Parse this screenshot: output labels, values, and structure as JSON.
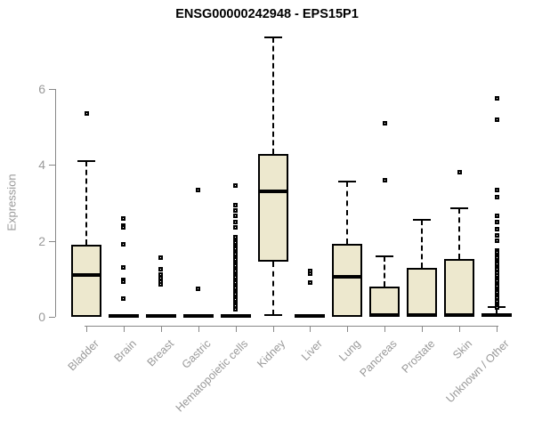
{
  "title": "ENSG00000242948 - EPS15P1",
  "colors": {
    "box_fill": "#EDE8CE",
    "box_border": "#000000",
    "median": "#000000",
    "axis": "#888888",
    "tick_label": "#999999",
    "title": "#000000",
    "background": "#ffffff"
  },
  "chart_data": {
    "type": "boxplot",
    "title": "ENSG00000242948 - EPS15P1",
    "xlabel": "",
    "ylabel": "Expression",
    "ylim": [
      0,
      7.5
    ],
    "yticks": [
      0,
      2,
      4,
      6
    ],
    "grid": false,
    "legend": false,
    "categories": [
      "Bladder",
      "Brain",
      "Breast",
      "Gastric",
      "Hematopoietic cells",
      "Kidney",
      "Liver",
      "Lung",
      "Pancreas",
      "Prostate",
      "Skin",
      "Unknown / Other"
    ],
    "series": [
      {
        "category": "Bladder",
        "whisker_low": 0,
        "q1": 0,
        "median": 1.1,
        "q3": 1.9,
        "whisker_high": 4.1,
        "outliers": [
          5.35
        ]
      },
      {
        "category": "Brain",
        "whisker_low": 0,
        "q1": 0,
        "median": 0.03,
        "q3": 0.07,
        "whisker_high": 0.07,
        "outliers": [
          2.6,
          2.4,
          2.35,
          1.9,
          1.3,
          0.98,
          0.93,
          0.47
        ]
      },
      {
        "category": "Breast",
        "whisker_low": 0,
        "q1": 0,
        "median": 0.03,
        "q3": 0.07,
        "whisker_high": 0.07,
        "outliers": [
          1.55,
          1.25,
          1.12,
          1.02,
          0.92,
          0.85
        ]
      },
      {
        "category": "Gastric",
        "whisker_low": 0,
        "q1": 0,
        "median": 0.03,
        "q3": 0.07,
        "whisker_high": 0.07,
        "outliers": [
          3.35,
          0.73
        ]
      },
      {
        "category": "Hematopoietic cells",
        "whisker_low": 0,
        "q1": 0,
        "median": 0.03,
        "q3": 0.07,
        "whisker_high": 0.07,
        "outliers": [
          3.45,
          2.95,
          2.8,
          2.65,
          2.5,
          2.35,
          2.1,
          2.0,
          1.95,
          1.85,
          1.8,
          1.7,
          1.65,
          1.55,
          1.5,
          1.4,
          1.35,
          1.25,
          1.2,
          1.1,
          1.05,
          0.95,
          0.9,
          0.8,
          0.75,
          0.65,
          0.6,
          0.5,
          0.45,
          0.35,
          0.3,
          0.2
        ]
      },
      {
        "category": "Kidney",
        "whisker_low": 0.05,
        "q1": 1.45,
        "median": 3.3,
        "q3": 4.3,
        "whisker_high": 7.35,
        "outliers": []
      },
      {
        "category": "Liver",
        "whisker_low": 0,
        "q1": 0,
        "median": 0.03,
        "q3": 0.07,
        "whisker_high": 0.07,
        "outliers": [
          1.2,
          1.13,
          0.9
        ]
      },
      {
        "category": "Lung",
        "whisker_low": 0,
        "q1": 0,
        "median": 1.05,
        "q3": 1.93,
        "whisker_high": 3.57,
        "outliers": []
      },
      {
        "category": "Pancreas",
        "whisker_low": 0,
        "q1": 0,
        "median": 0.04,
        "q3": 0.8,
        "whisker_high": 1.6,
        "outliers": [
          5.1,
          3.6
        ]
      },
      {
        "category": "Prostate",
        "whisker_low": 0,
        "q1": 0,
        "median": 0.04,
        "q3": 1.3,
        "whisker_high": 2.55,
        "outliers": []
      },
      {
        "category": "Skin",
        "whisker_low": 0,
        "q1": 0,
        "median": 0.04,
        "q3": 1.52,
        "whisker_high": 2.85,
        "outliers": [
          3.82
        ]
      },
      {
        "category": "Unknown / Other",
        "whisker_low": 0,
        "q1": 0,
        "median": 0.04,
        "q3": 0.1,
        "whisker_high": 0.25,
        "outliers": [
          5.75,
          5.2,
          3.35,
          3.15,
          2.65,
          2.5,
          2.3,
          2.15,
          2.0,
          1.75,
          1.7,
          1.6,
          1.55,
          1.45,
          1.4,
          1.3,
          1.25,
          1.15,
          1.1,
          1.0,
          0.95,
          0.85,
          0.8,
          0.7,
          0.65,
          0.55,
          0.5,
          0.4,
          0.35,
          0.3,
          0.25
        ]
      }
    ]
  }
}
